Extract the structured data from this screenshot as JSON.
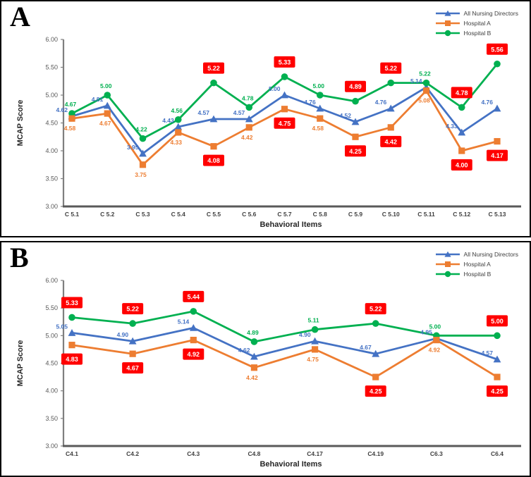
{
  "figure": {
    "background": "#ffffff",
    "highlight_color": "#FF0000",
    "highlight_text_color": "#ffffff"
  },
  "chart_data": [
    {
      "type": "line",
      "panel_label": "A",
      "title": "",
      "xlabel": "Behavioral Items",
      "ylabel": "MCAP Score",
      "ylim": [
        3.0,
        6.0
      ],
      "yticks": [
        "6.00",
        "5.50",
        "5.00",
        "4.50",
        "4.00",
        "3.50",
        "3.00"
      ],
      "grid": false,
      "legend_position": "top-right",
      "categories": [
        "C 5.1",
        "C 5.2",
        "C 5.3",
        "C 5.4",
        "C 5.5",
        "C 5.6",
        "C 5.7",
        "C 5.8",
        "C 5.9",
        "C 5.10",
        "C 5.11",
        "C 5.12",
        "C 5.13"
      ],
      "series": [
        {
          "name": "All Nursing Directors",
          "color": "#4472C4",
          "marker": "triangle",
          "values": [
            4.62,
            4.81,
            3.95,
            4.43,
            4.57,
            4.57,
            5.0,
            4.76,
            4.52,
            4.76,
            5.14,
            4.33,
            4.76
          ],
          "labels": [
            "4.62",
            "4.81",
            "3.95",
            "4.43",
            "4.57",
            "4.57",
            "5.00",
            "4.76",
            "4.52",
            "4.76",
            "5.14",
            "4.33",
            "4.76"
          ],
          "highlighted": [
            false,
            false,
            false,
            false,
            false,
            false,
            false,
            false,
            false,
            false,
            false,
            false,
            false
          ]
        },
        {
          "name": "Hospital A",
          "color": "#ED7D31",
          "marker": "square",
          "values": [
            4.58,
            4.67,
            3.75,
            4.33,
            4.08,
            4.42,
            4.75,
            4.58,
            4.25,
            4.42,
            5.08,
            4.0,
            4.17
          ],
          "labels": [
            "4.58",
            "4.67",
            "3.75",
            "4.33",
            "4.08",
            "4.42",
            "4.75",
            "4.58",
            "4.25",
            "4.42",
            "5.08",
            "4.00",
            "4.17"
          ],
          "highlighted": [
            false,
            false,
            false,
            false,
            true,
            false,
            true,
            false,
            true,
            true,
            false,
            true,
            true
          ]
        },
        {
          "name": "Hospital B",
          "color": "#00B050",
          "marker": "circle",
          "values": [
            4.67,
            5.0,
            4.22,
            4.56,
            5.22,
            4.78,
            5.33,
            5.0,
            4.89,
            5.22,
            5.22,
            4.78,
            5.56
          ],
          "labels": [
            "4.67",
            "5.00",
            "4.22",
            "4.56",
            "5.22",
            "4.78",
            "5.33",
            "5.00",
            "4.89",
            "5.22",
            "5.22",
            "4.78",
            "5.56"
          ],
          "highlighted": [
            false,
            false,
            false,
            false,
            true,
            false,
            true,
            false,
            true,
            true,
            false,
            true,
            true
          ]
        }
      ]
    },
    {
      "type": "line",
      "panel_label": "B",
      "title": "",
      "xlabel": "Behavioral Items",
      "ylabel": "MCAP Score",
      "ylim": [
        3.0,
        6.0
      ],
      "yticks": [
        "6.00",
        "5.50",
        "5.00",
        "4.50",
        "4.00",
        "3.50",
        "3.00"
      ],
      "grid": false,
      "legend_position": "top-right",
      "categories": [
        "C4.1",
        "C4.2",
        "C4.3",
        "C4.8",
        "C4.17",
        "C4.19",
        "C6.3",
        "C6.4"
      ],
      "series": [
        {
          "name": "All Nursing Directors",
          "color": "#4472C4",
          "marker": "triangle",
          "values": [
            5.05,
            4.9,
            5.14,
            4.62,
            4.9,
            4.67,
            4.95,
            4.57
          ],
          "labels": [
            "5.05",
            "4.90",
            "5.14",
            "4.62",
            "4.90",
            "4.67",
            "4.95",
            "4.57"
          ],
          "highlighted": [
            false,
            false,
            false,
            false,
            false,
            false,
            false,
            false
          ]
        },
        {
          "name": "Hospital A",
          "color": "#ED7D31",
          "marker": "square",
          "values": [
            4.83,
            4.67,
            4.92,
            4.42,
            4.75,
            4.25,
            4.92,
            4.25
          ],
          "labels": [
            "4.83",
            "4.67",
            "4.92",
            "4.42",
            "4.75",
            "4.25",
            "4.92",
            "4.25"
          ],
          "highlighted": [
            true,
            true,
            true,
            false,
            false,
            true,
            false,
            true
          ]
        },
        {
          "name": "Hospital B",
          "color": "#00B050",
          "marker": "circle",
          "values": [
            5.33,
            5.22,
            5.44,
            4.89,
            5.11,
            5.22,
            5.0,
            5.0
          ],
          "labels": [
            "5.33",
            "5.22",
            "5.44",
            "4.89",
            "5.11",
            "5.22",
            "5.00",
            "5.00"
          ],
          "highlighted": [
            true,
            true,
            true,
            false,
            false,
            true,
            false,
            true
          ]
        }
      ]
    }
  ]
}
